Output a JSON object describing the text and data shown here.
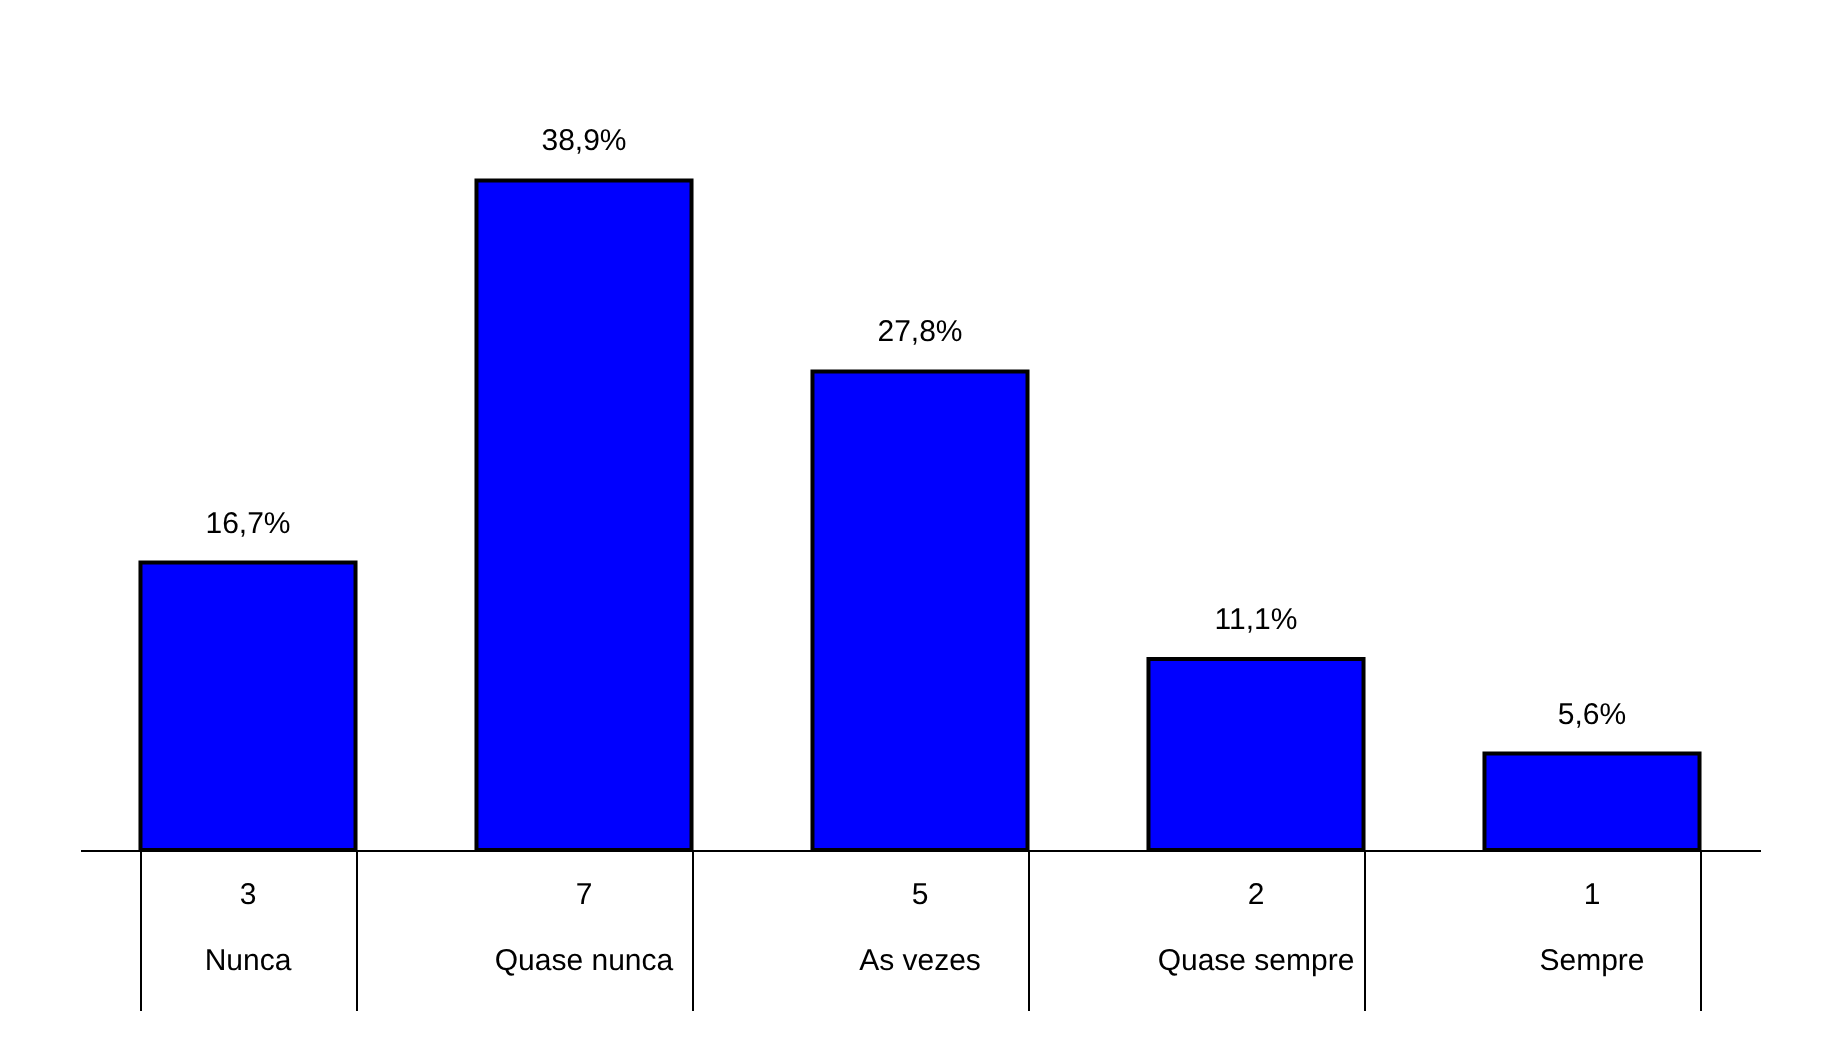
{
  "chart_data": {
    "type": "bar",
    "categories": [
      "Nunca",
      "Quase nunca",
      "As vezes",
      "Quase sempre",
      "Sempre"
    ],
    "values": [
      16.7,
      38.9,
      27.8,
      11.1,
      5.6
    ],
    "value_labels": [
      "16,7%",
      "38,9%",
      "27,8%",
      "11,1%",
      "5,6%"
    ],
    "color": "#0000ff",
    "annotations": [
      "3",
      "7",
      "5",
      "2",
      "1"
    ]
  }
}
